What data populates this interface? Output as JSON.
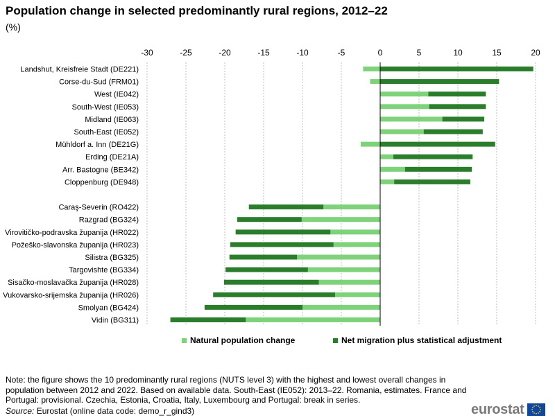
{
  "title": "Population change in selected predominantly rural regions, 2012–22",
  "unit": "(%)",
  "colors": {
    "natural": "#7dd27a",
    "migration": "#2a7d2a",
    "grid": "#bfbfbf",
    "axis": "#000000"
  },
  "chart_data": {
    "type": "bar",
    "orientation": "horizontal",
    "stacked": true,
    "xlim": [
      -30,
      20
    ],
    "xticks": [
      -30,
      -25,
      -20,
      -15,
      -10,
      -5,
      0,
      5,
      10,
      15,
      20
    ],
    "xtick_labels": [
      "-30",
      "-25",
      "-20",
      "-15",
      "-10",
      "-5",
      "0",
      "5",
      "10",
      "15",
      "20"
    ],
    "grid": true,
    "legend_position": "bottom",
    "categories": [
      "Landshut, Kreisfreie Stadt (DE221)",
      "Corse-du-Sud (FRM01)",
      "West (IE042)",
      "South-West (IE053)",
      "Midland (IE063)",
      "South-East (IE052)",
      "Mühldorf a. Inn (DE21G)",
      "Erding (DE21A)",
      "Arr. Bastogne (BE342)",
      "Cloppenburg (DE948)",
      "",
      "Caraş-Severin (RO422)",
      "Razgrad (BG324)",
      "Virovitičko-podravska županija (HR022)",
      "Požeško-slavonska županija (HR023)",
      "Silistra (BG325)",
      "Targovishte (BG334)",
      "Sisačko-moslavačka županija (HR028)",
      "Vukovarsko-srijemska županija (HR026)",
      "Smolyan (BG424)",
      "Vidin (BG311)"
    ],
    "series": [
      {
        "name": "Natural population change",
        "values": [
          -2.2,
          -1.3,
          6.2,
          6.3,
          8.0,
          5.6,
          -2.5,
          1.7,
          3.2,
          1.8,
          null,
          -7.3,
          -10.1,
          -6.4,
          -6.0,
          -10.7,
          -9.3,
          -7.9,
          -5.8,
          -10.0,
          -17.3
        ]
      },
      {
        "name": "Net migration plus statistical adjustment",
        "values": [
          19.7,
          15.3,
          7.4,
          7.3,
          5.4,
          7.6,
          14.8,
          10.2,
          8.6,
          9.8,
          null,
          -9.6,
          -8.3,
          -12.2,
          -13.3,
          -8.7,
          -10.6,
          -12.2,
          -15.7,
          -12.6,
          -9.7
        ]
      }
    ]
  },
  "note": "Note: the figure shows the 10 predominantly rural regions (NUTS level 3) with the highest and lowest overall changes in population between 2012 and 2022. Based on available data. South-East (IE052): 2013–22. Romania, estimates. France and Portugal: provisional. Czechia, Estonia, Croatia, Italy, Luxembourg and Portugal: break in series.",
  "source": {
    "label": "Source:",
    "text": " Eurostat (online data code: demo_r_gind3)"
  },
  "logo_text": "eurostat"
}
